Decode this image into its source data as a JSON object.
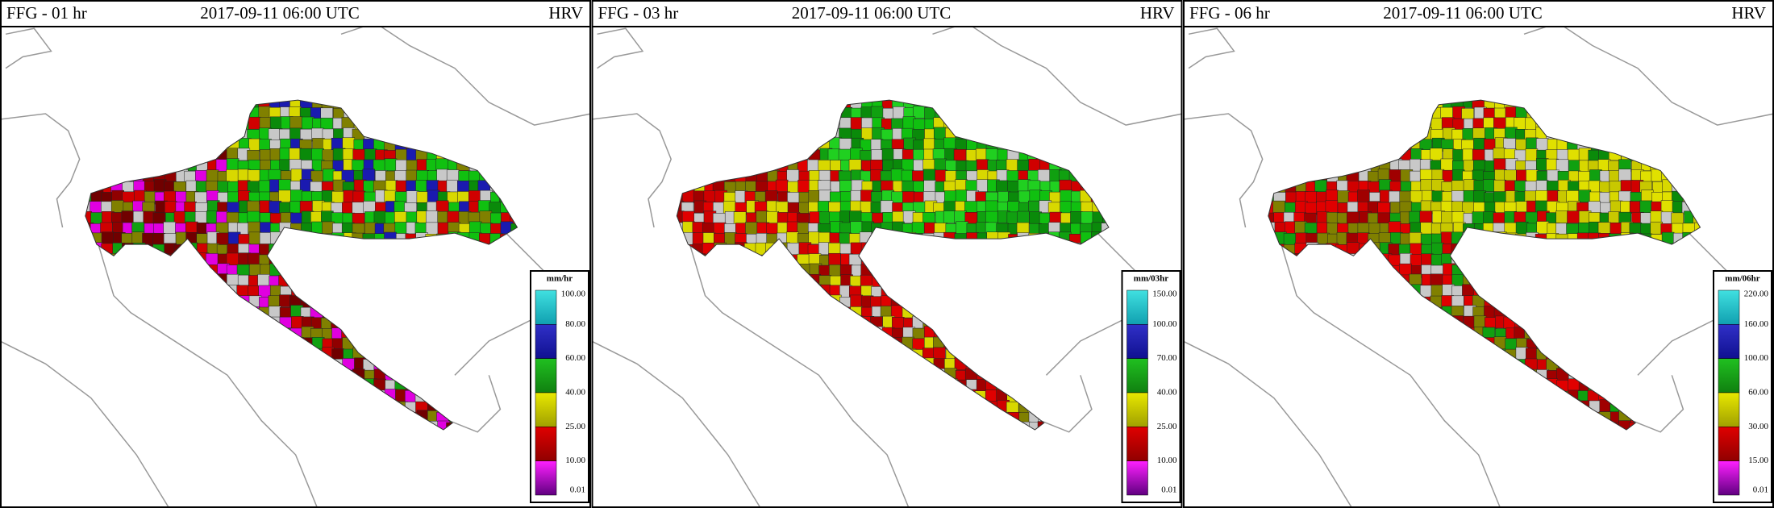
{
  "panels": [
    {
      "product": "FFG - 01 hr",
      "datetime": "2017-09-11 06:00 UTC",
      "region": "HRV",
      "legend": {
        "unit": "mm/hr",
        "labels": [
          "100.00",
          "80.00",
          "60.00",
          "40.00",
          "25.00",
          "10.00",
          "0.01"
        ]
      }
    },
    {
      "product": "FFG - 03 hr",
      "datetime": "2017-09-11 06:00 UTC",
      "region": "HRV",
      "legend": {
        "unit": "mm/03hr",
        "labels": [
          "150.00",
          "100.00",
          "70.00",
          "40.00",
          "25.00",
          "10.00",
          "0.01"
        ]
      }
    },
    {
      "product": "FFG - 06 hr",
      "datetime": "2017-09-11 06:00 UTC",
      "region": "HRV",
      "legend": {
        "unit": "mm/06hr",
        "labels": [
          "220.00",
          "160.00",
          "100.00",
          "60.00",
          "30.00",
          "15.00",
          "0.01"
        ]
      }
    }
  ]
}
